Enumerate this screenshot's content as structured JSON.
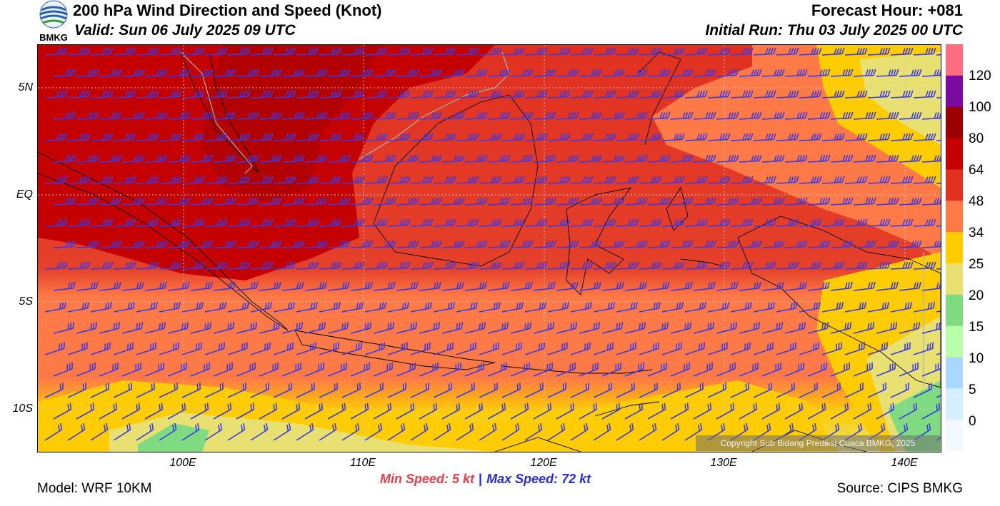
{
  "header": {
    "title": "200 hPa Wind Direction and Speed (Knot)",
    "valid": "Valid: Sun 06 July 2025 09 UTC",
    "forecast_hour": "Forecast Hour: +081",
    "initial_run": "Initial Run: Thu 03 July 2025 00 UTC",
    "logo_text": "BMKG"
  },
  "map": {
    "lat_labels": [
      "5N",
      "EQ",
      "5S",
      "10S"
    ],
    "lon_labels": [
      "100E",
      "110E",
      "120E",
      "130E",
      "140E"
    ],
    "copyright": "Copyright Sub Bidang Prediksi Cuaca BMKG, 2025",
    "barb_color": "#3a3ae6",
    "coastline_color": "#000000",
    "border_color": "#b0b0b0"
  },
  "colorbar": {
    "labels": [
      "120",
      "100",
      "80",
      "64",
      "48",
      "34",
      "25",
      "20",
      "15",
      "10",
      "5",
      "0"
    ],
    "colors": [
      "#ff6e80",
      "#7a0aa0",
      "#9a0000",
      "#c40000",
      "#e13020",
      "#ff7a46",
      "#ffcc00",
      "#e8e070",
      "#7fdb7f",
      "#b8ffa8",
      "#a8d8ff",
      "#d6efff",
      "#f4f9ff"
    ]
  },
  "footer": {
    "min_speed": "Min Speed:  5 kt",
    "separator": "|",
    "max_speed": "Max Speed:  72 kt",
    "model": "Model: WRF 10KM",
    "source": "Source: CIPS BMKG"
  }
}
